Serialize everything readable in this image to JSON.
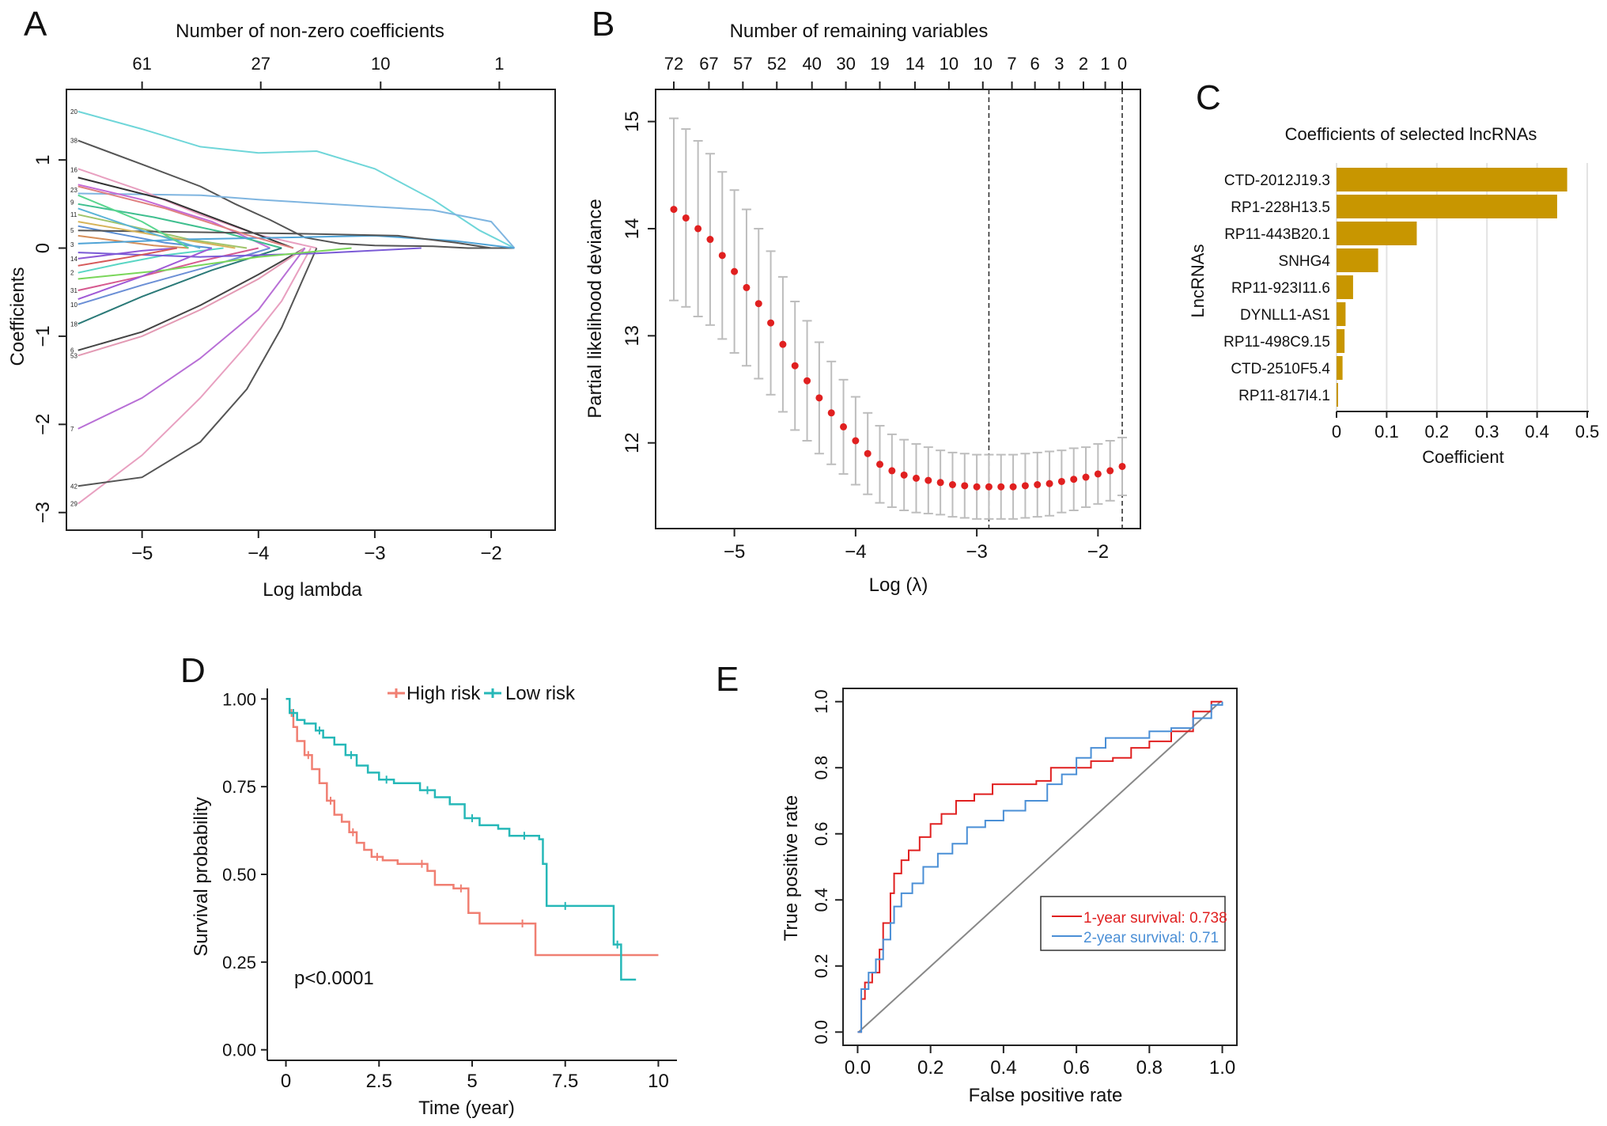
{
  "figure": {
    "panel_letters": [
      "A",
      "B",
      "C",
      "D",
      "E"
    ]
  },
  "chart_data": [
    {
      "panel": "A",
      "type": "line",
      "title": "Number of non-zero coefficients",
      "xlabel": "Log lambda",
      "ylabel": "Coefficients",
      "xlim": [
        -5.65,
        -1.45
      ],
      "ylim": [
        -3.2,
        1.8
      ],
      "x_ticks": [
        -5,
        -4,
        -3,
        -2
      ],
      "y_ticks": [
        1,
        0,
        -1,
        -2,
        -3
      ],
      "top_axis": {
        "values": [
          -5.0,
          -3.98,
          -2.95,
          -1.93
        ],
        "labels": [
          "61",
          "27",
          "10",
          "1"
        ]
      },
      "left_labels": [
        {
          "y": 1.55,
          "t": "20"
        },
        {
          "y": 1.22,
          "t": "38"
        },
        {
          "y": 0.89,
          "t": "16"
        },
        {
          "y": 0.66,
          "t": "23"
        },
        {
          "y": 0.52,
          "t": "9"
        },
        {
          "y": 0.38,
          "t": "11"
        },
        {
          "y": 0.2,
          "t": "5"
        },
        {
          "y": 0.04,
          "t": "3"
        },
        {
          "y": -0.12,
          "t": "14"
        },
        {
          "y": -0.28,
          "t": "2"
        },
        {
          "y": -0.48,
          "t": "31"
        },
        {
          "y": -0.64,
          "t": "10"
        },
        {
          "y": -0.86,
          "t": "18"
        },
        {
          "y": -1.16,
          "t": "6"
        },
        {
          "y": -1.22,
          "t": "53"
        },
        {
          "y": -2.05,
          "t": "7"
        },
        {
          "y": -2.7,
          "t": "42"
        },
        {
          "y": -2.9,
          "t": "29"
        }
      ],
      "series": [
        {
          "color": "#6fd6d9",
          "x": [
            -5.55,
            -5.0,
            -4.5,
            -4.0,
            -3.5,
            -3.0,
            -2.5,
            -2.1,
            -1.8
          ],
          "y": [
            1.55,
            1.35,
            1.15,
            1.08,
            1.1,
            0.9,
            0.55,
            0.2,
            0.0
          ]
        },
        {
          "color": "#555555",
          "x": [
            -5.55,
            -5.0,
            -4.5,
            -4.2,
            -3.9,
            -3.6,
            -3.3,
            -3.0,
            -2.5,
            -2.2,
            -1.8
          ],
          "y": [
            1.22,
            0.95,
            0.7,
            0.5,
            0.32,
            0.12,
            0.05,
            0.03,
            0.02,
            0.0,
            0.0
          ]
        },
        {
          "color": "#7fb5e0",
          "x": [
            -5.55,
            -4.5,
            -4.0,
            -3.0,
            -2.5,
            -2.0,
            -1.8
          ],
          "y": [
            0.62,
            0.6,
            0.55,
            0.47,
            0.43,
            0.3,
            0.0
          ]
        },
        {
          "color": "#e8a0c0",
          "x": [
            -5.55,
            -5.0,
            -4.5,
            -4.0,
            -3.5
          ],
          "y": [
            0.9,
            0.65,
            0.38,
            0.15,
            0.0
          ]
        },
        {
          "color": "#c46bd6",
          "x": [
            -5.55,
            -5.0,
            -4.4,
            -3.9
          ],
          "y": [
            0.72,
            0.55,
            0.3,
            0.0
          ]
        },
        {
          "color": "#333333",
          "x": [
            -5.55,
            -4.8,
            -4.2,
            -3.7
          ],
          "y": [
            0.8,
            0.55,
            0.25,
            0.0
          ]
        },
        {
          "color": "#3fbf8f",
          "x": [
            -5.55,
            -4.9,
            -4.3,
            -3.8
          ],
          "y": [
            0.5,
            0.35,
            0.18,
            0.0
          ]
        },
        {
          "color": "#a0c46b",
          "x": [
            -5.55,
            -5.1,
            -4.6,
            -4.1
          ],
          "y": [
            0.38,
            0.25,
            0.1,
            0.0
          ]
        },
        {
          "color": "#5a8fd6",
          "x": [
            -5.55,
            -5.2,
            -4.8,
            -4.4
          ],
          "y": [
            0.25,
            0.16,
            0.06,
            0.0
          ]
        },
        {
          "color": "#d68f5a",
          "x": [
            -5.55,
            -5.2,
            -4.9,
            -4.6
          ],
          "y": [
            0.14,
            0.08,
            0.03,
            0.0
          ]
        },
        {
          "color": "#8f5ad6",
          "x": [
            -5.55,
            -5.3,
            -5.0,
            -4.7
          ],
          "y": [
            -0.12,
            -0.08,
            -0.03,
            0.0
          ]
        },
        {
          "color": "#5ad6c4",
          "x": [
            -5.55,
            -5.2,
            -4.8,
            -4.3
          ],
          "y": [
            -0.28,
            -0.18,
            -0.08,
            0.0
          ]
        },
        {
          "color": "#d65a8f",
          "x": [
            -5.55,
            -5.0,
            -4.5,
            -4.0
          ],
          "y": [
            -0.48,
            -0.32,
            -0.15,
            0.0
          ]
        },
        {
          "color": "#6b8fd6",
          "x": [
            -5.55,
            -5.0,
            -4.4,
            -3.9
          ],
          "y": [
            -0.64,
            -0.42,
            -0.2,
            0.0
          ]
        },
        {
          "color": "#2b7a78",
          "x": [
            -5.55,
            -5.0,
            -4.4,
            -3.8
          ],
          "y": [
            -0.86,
            -0.55,
            -0.25,
            0.0
          ]
        },
        {
          "color": "#444444",
          "x": [
            -5.55,
            -5.0,
            -4.5,
            -4.0,
            -3.6
          ],
          "y": [
            -1.16,
            -0.95,
            -0.65,
            -0.3,
            0.0
          ]
        },
        {
          "color": "#e39ab4",
          "x": [
            -5.55,
            -5.0,
            -4.5,
            -4.0,
            -3.6
          ],
          "y": [
            -1.22,
            -1.0,
            -0.7,
            -0.35,
            0.0
          ]
        },
        {
          "color": "#b86fd6",
          "x": [
            -5.55,
            -5.0,
            -4.5,
            -4.0,
            -3.6
          ],
          "y": [
            -2.05,
            -1.7,
            -1.25,
            -0.7,
            0.0
          ]
        },
        {
          "color": "#e8a0c0",
          "x": [
            -5.55,
            -5.0,
            -4.5,
            -4.1,
            -3.8,
            -3.55
          ],
          "y": [
            -2.9,
            -2.35,
            -1.7,
            -1.1,
            -0.6,
            0.0
          ]
        },
        {
          "color": "#555555",
          "x": [
            -5.55,
            -5.0,
            -4.5,
            -4.1,
            -3.8,
            -3.5
          ],
          "y": [
            -2.7,
            -2.6,
            -2.2,
            -1.6,
            -0.9,
            0.0
          ]
        },
        {
          "color": "#4fa3d6",
          "x": [
            -5.55,
            -4.6,
            -3.8,
            -3.0,
            -2.3,
            -1.8
          ],
          "y": [
            0.05,
            0.1,
            0.12,
            0.14,
            0.08,
            0.0
          ]
        },
        {
          "color": "#7a5ad6",
          "x": [
            -5.55,
            -4.5,
            -3.5,
            -2.6
          ],
          "y": [
            -0.05,
            -0.1,
            -0.06,
            0.0
          ]
        },
        {
          "color": "#7ad65a",
          "x": [
            -5.55,
            -4.8,
            -4.0,
            -3.2
          ],
          "y": [
            -0.35,
            -0.25,
            -0.1,
            0.0
          ]
        },
        {
          "color": "#555555",
          "x": [
            -5.55,
            -4.5,
            -3.5,
            -2.8,
            -2.3,
            -2.0
          ],
          "y": [
            0.2,
            0.18,
            0.16,
            0.14,
            0.06,
            0.0
          ]
        },
        {
          "color": "#d6b45a",
          "x": [
            -5.55,
            -4.9,
            -4.2
          ],
          "y": [
            0.3,
            0.15,
            0.0
          ]
        },
        {
          "color": "#5ab4d6",
          "x": [
            -5.55,
            -5.0,
            -4.5
          ],
          "y": [
            0.45,
            0.2,
            0.0
          ]
        },
        {
          "color": "#d65a5a",
          "x": [
            -5.55,
            -5.1,
            -4.7
          ],
          "y": [
            -0.2,
            -0.1,
            0.0
          ]
        },
        {
          "color": "#5ad68f",
          "x": [
            -5.55,
            -5.0,
            -4.6
          ],
          "y": [
            0.6,
            0.3,
            0.0
          ]
        },
        {
          "color": "#a05ad6",
          "x": [
            -5.55,
            -5.0,
            -4.4
          ],
          "y": [
            -0.58,
            -0.32,
            0.0
          ]
        },
        {
          "color": "#e08080",
          "x": [
            -5.55,
            -4.8,
            -4.1,
            -3.7
          ],
          "y": [
            0.7,
            0.45,
            0.15,
            0.0
          ]
        }
      ]
    },
    {
      "panel": "B",
      "type": "scatter",
      "title": "Number of remaining variables",
      "xlabel": "Log (λ)",
      "ylabel": "Partial likelihood deviance",
      "xlim": [
        -5.65,
        -1.65
      ],
      "ylim": [
        11.2,
        15.3
      ],
      "x_ticks": [
        -5,
        -4,
        -3,
        -2
      ],
      "y_ticks": [
        12,
        13,
        14,
        15
      ],
      "top_axis": {
        "values": [
          -5.5,
          -5.21,
          -4.93,
          -4.65,
          -4.36,
          -4.08,
          -3.8,
          -3.51,
          -3.23,
          -2.95,
          -2.71,
          -2.52,
          -2.32,
          -2.12,
          -1.94,
          -1.8
        ],
        "labels": [
          "72",
          "67",
          "57",
          "52",
          "40",
          "30",
          "19",
          "14",
          "10",
          "10",
          "7",
          "6",
          "3",
          "2",
          "1",
          "0"
        ]
      },
      "vlines": [
        -2.9,
        -1.8
      ],
      "points": {
        "x": [
          -5.5,
          -5.4,
          -5.3,
          -5.2,
          -5.1,
          -5.0,
          -4.9,
          -4.8,
          -4.7,
          -4.6,
          -4.5,
          -4.4,
          -4.3,
          -4.2,
          -4.1,
          -4.0,
          -3.9,
          -3.8,
          -3.7,
          -3.6,
          -3.5,
          -3.4,
          -3.3,
          -3.2,
          -3.1,
          -3.0,
          -2.9,
          -2.8,
          -2.7,
          -2.6,
          -2.5,
          -2.4,
          -2.3,
          -2.2,
          -2.1,
          -2.0,
          -1.9,
          -1.8
        ],
        "y": [
          14.18,
          14.1,
          14.0,
          13.9,
          13.75,
          13.6,
          13.45,
          13.3,
          13.12,
          12.92,
          12.72,
          12.58,
          12.42,
          12.28,
          12.15,
          12.02,
          11.9,
          11.8,
          11.74,
          11.7,
          11.67,
          11.65,
          11.63,
          11.61,
          11.6,
          11.59,
          11.59,
          11.59,
          11.59,
          11.6,
          11.61,
          11.62,
          11.64,
          11.66,
          11.68,
          11.71,
          11.74,
          11.78
        ],
        "err": [
          0.85,
          0.83,
          0.82,
          0.8,
          0.78,
          0.76,
          0.73,
          0.7,
          0.67,
          0.63,
          0.6,
          0.56,
          0.52,
          0.48,
          0.44,
          0.41,
          0.38,
          0.36,
          0.34,
          0.33,
          0.32,
          0.31,
          0.3,
          0.3,
          0.3,
          0.3,
          0.3,
          0.3,
          0.3,
          0.3,
          0.3,
          0.3,
          0.29,
          0.29,
          0.28,
          0.28,
          0.28,
          0.27
        ],
        "color": "#e02020"
      }
    },
    {
      "panel": "C",
      "type": "bar",
      "title": "Coefficients of selected lncRNAs",
      "xlabel": "Coefficient",
      "ylabel": "LncRNAs",
      "xlim": [
        0,
        0.5
      ],
      "x_ticks": [
        "0",
        "0.1",
        "0.2",
        "0.3",
        "0.4",
        "0.5"
      ],
      "bar_color": "#c89600",
      "categories": [
        "CTD-2012J19.3",
        "RP1-228H13.5",
        "RP11-443B20.1",
        "SNHG4",
        "RP11-923I11.6",
        "DYNLL1-AS1",
        "RP11-498C9.15",
        "CTD-2510F5.4",
        "RP11-817I4.1"
      ],
      "values": [
        0.46,
        0.44,
        0.16,
        0.083,
        0.033,
        0.018,
        0.016,
        0.012,
        0.002
      ]
    },
    {
      "panel": "D",
      "type": "line",
      "title": "",
      "xlabel": "Time (year)",
      "ylabel": "Survival probability",
      "xlim": [
        -0.5,
        10.5
      ],
      "ylim": [
        -0.03,
        1.03
      ],
      "x_ticks": [
        "0",
        "2.5",
        "5",
        "7.5",
        "10"
      ],
      "y_ticks": [
        "0.00",
        "0.25",
        "0.50",
        "0.75",
        "1.00"
      ],
      "legend": [
        "High risk",
        "Low risk"
      ],
      "annotation": "p<0.0001",
      "series": [
        {
          "name": "High risk",
          "color": "#f07f72",
          "x": [
            0,
            0.1,
            0.2,
            0.3,
            0.5,
            0.7,
            0.9,
            1.1,
            1.3,
            1.5,
            1.7,
            1.9,
            2.1,
            2.3,
            2.6,
            3.0,
            3.5,
            3.8,
            4.0,
            4.5,
            4.9,
            5.2,
            6.0,
            6.7,
            7.5,
            10.0
          ],
          "y": [
            1.0,
            0.96,
            0.92,
            0.88,
            0.84,
            0.8,
            0.76,
            0.71,
            0.67,
            0.65,
            0.62,
            0.59,
            0.57,
            0.55,
            0.54,
            0.53,
            0.53,
            0.51,
            0.47,
            0.46,
            0.39,
            0.36,
            0.36,
            0.27,
            0.27,
            0.27
          ]
        },
        {
          "name": "Low risk",
          "color": "#26b8b8",
          "x": [
            0,
            0.1,
            0.3,
            0.5,
            0.8,
            1.0,
            1.3,
            1.6,
            1.9,
            2.2,
            2.5,
            2.9,
            3.3,
            3.6,
            4.0,
            4.4,
            4.8,
            5.2,
            5.7,
            6.0,
            6.8,
            6.9,
            7.0,
            8.0,
            8.6,
            8.8,
            9.0,
            9.4
          ],
          "y": [
            1.0,
            0.96,
            0.94,
            0.93,
            0.91,
            0.89,
            0.87,
            0.84,
            0.81,
            0.79,
            0.77,
            0.76,
            0.76,
            0.74,
            0.72,
            0.7,
            0.66,
            0.64,
            0.63,
            0.61,
            0.6,
            0.53,
            0.41,
            0.41,
            0.41,
            0.3,
            0.2,
            0.2
          ]
        }
      ]
    },
    {
      "panel": "E",
      "type": "line",
      "title": "",
      "xlabel": "False positive rate",
      "ylabel": "True positive rate",
      "xlim": [
        -0.04,
        1.04
      ],
      "ylim": [
        -0.04,
        1.04
      ],
      "x_ticks": [
        "0.0",
        "0.2",
        "0.4",
        "0.6",
        "0.8",
        "1.0"
      ],
      "y_ticks": [
        "0.0",
        "0.2",
        "0.4",
        "0.6",
        "0.8",
        "1.0"
      ],
      "legend": [
        "1-year survival: 0.738",
        "2-year survival: 0.71"
      ],
      "series": [
        {
          "name": "1-year survival: 0.738",
          "color": "#e02020",
          "x": [
            0,
            0.01,
            0.02,
            0.04,
            0.06,
            0.07,
            0.09,
            0.1,
            0.12,
            0.14,
            0.17,
            0.2,
            0.23,
            0.27,
            0.32,
            0.37,
            0.44,
            0.49,
            0.53,
            0.58,
            0.64,
            0.7,
            0.75,
            0.8,
            0.86,
            0.92,
            0.97,
            1.0
          ],
          "y": [
            0,
            0.1,
            0.15,
            0.18,
            0.25,
            0.33,
            0.42,
            0.48,
            0.52,
            0.55,
            0.59,
            0.63,
            0.66,
            0.7,
            0.72,
            0.75,
            0.75,
            0.76,
            0.8,
            0.8,
            0.82,
            0.83,
            0.86,
            0.88,
            0.91,
            0.97,
            1.0,
            1.0
          ]
        },
        {
          "name": "2-year survival: 0.71",
          "color": "#4a8fd6",
          "x": [
            0,
            0.01,
            0.03,
            0.05,
            0.07,
            0.09,
            0.1,
            0.12,
            0.15,
            0.18,
            0.22,
            0.26,
            0.3,
            0.35,
            0.4,
            0.46,
            0.52,
            0.56,
            0.6,
            0.64,
            0.68,
            0.74,
            0.8,
            0.86,
            0.92,
            0.97,
            1.0
          ],
          "y": [
            0,
            0.13,
            0.18,
            0.22,
            0.28,
            0.33,
            0.38,
            0.42,
            0.45,
            0.5,
            0.54,
            0.57,
            0.62,
            0.64,
            0.67,
            0.7,
            0.75,
            0.78,
            0.83,
            0.86,
            0.89,
            0.89,
            0.91,
            0.92,
            0.95,
            0.99,
            1.0
          ]
        }
      ]
    }
  ]
}
